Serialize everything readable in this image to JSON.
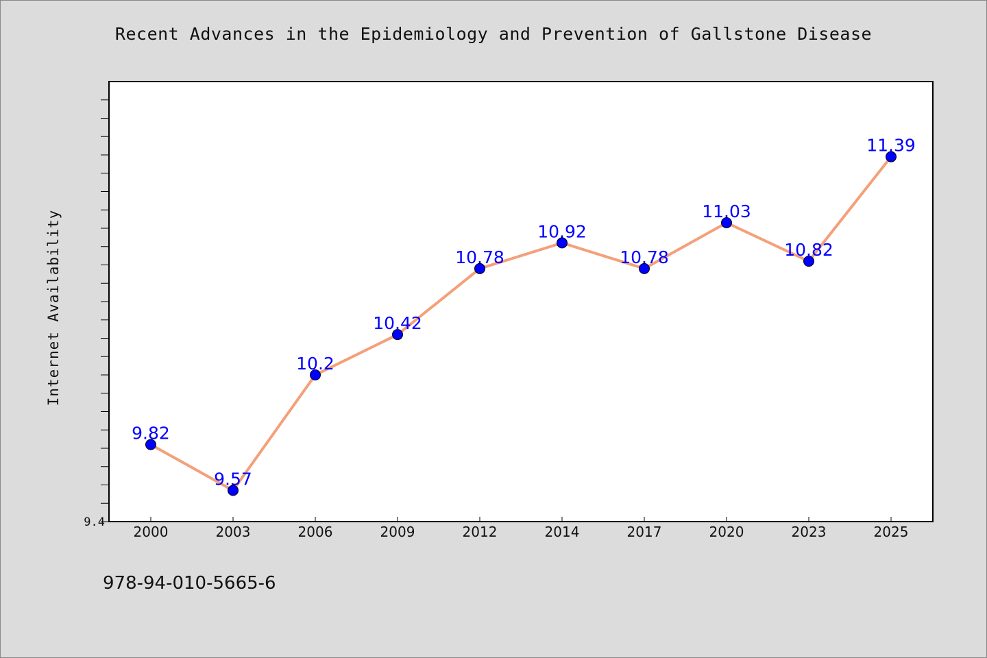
{
  "chart_data": {
    "type": "line",
    "title": "Recent Advances in the Epidemiology and Prevention of Gallstone Disease",
    "xlabel": "",
    "ylabel": "Internet Availability",
    "categories": [
      "2000",
      "2003",
      "2006",
      "2009",
      "2012",
      "2014",
      "2017",
      "2020",
      "2023",
      "2025"
    ],
    "series": [
      {
        "values": [
          9.82,
          9.57,
          10.2,
          10.42,
          10.78,
          10.92,
          10.78,
          11.03,
          10.82,
          11.39
        ],
        "labels": [
          "9.82",
          "9.57",
          "10.2",
          "10.42",
          "10.78",
          "10.92",
          "10.78",
          "11.03",
          "10.82",
          "11.39"
        ],
        "line_color": "#f4a07a",
        "marker_color": "#0000ff"
      }
    ],
    "ylim": [
      9.4,
      11.8
    ],
    "y_tick_labels": [
      "9.4"
    ],
    "grid": false,
    "data_labels": true,
    "label_color": "#0000ff",
    "background": "#dcdcdc",
    "plot_background": "#ffffff"
  },
  "footer": {
    "code": "978-94-010-5665-6"
  }
}
